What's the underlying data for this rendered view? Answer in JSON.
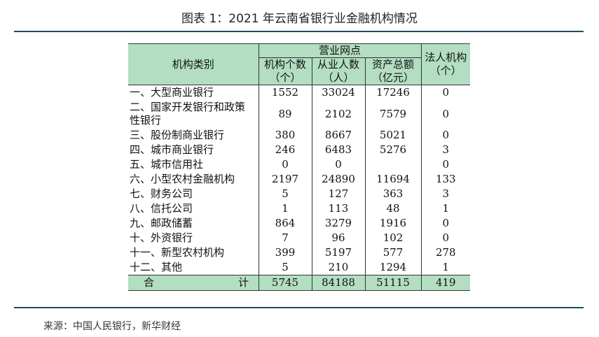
{
  "title": "图表 1：2021 年云南省银行业金融机构情况",
  "source": "来源：中国人民银行，新华财经",
  "table": {
    "header": {
      "category": "机构类别",
      "group": "营业网点",
      "branches": [
        "机构个数",
        "（个）"
      ],
      "employees": [
        "从业人数",
        "（人）"
      ],
      "assets": [
        "资产总额",
        "（亿元）"
      ],
      "legal": [
        "法人机构",
        "（个）"
      ]
    },
    "rows": [
      {
        "category": "一、大型商业银行",
        "branches": "1552",
        "employees": "33024",
        "assets": "17246",
        "legal": "0"
      },
      {
        "category": "二、国家开发银行和政策性银行",
        "category_line1": "二、国家开发银行和政策",
        "category_line2": "性银行",
        "branches": "89",
        "employees": "2102",
        "assets": "7579",
        "legal": "0"
      },
      {
        "category": "三、股份制商业银行",
        "branches": "380",
        "employees": "8667",
        "assets": "5021",
        "legal": "0"
      },
      {
        "category": "四、城市商业银行",
        "branches": "246",
        "employees": "6483",
        "assets": "5276",
        "legal": "3"
      },
      {
        "category": "五、城市信用社",
        "branches": "0",
        "employees": "0",
        "assets": "",
        "legal": "0"
      },
      {
        "category": "六、小型农村金融机构",
        "branches": "2197",
        "employees": "24890",
        "assets": "11694",
        "legal": "133"
      },
      {
        "category": "七、财务公司",
        "branches": "5",
        "employees": "127",
        "assets": "363",
        "legal": "3"
      },
      {
        "category": "八、信托公司",
        "branches": "1",
        "employees": "113",
        "assets": "48",
        "legal": "1"
      },
      {
        "category": "九、邮政储蓄",
        "branches": "864",
        "employees": "3279",
        "assets": "1916",
        "legal": "0"
      },
      {
        "category": "十、外资银行",
        "branches": "7",
        "employees": "96",
        "assets": "102",
        "legal": "0"
      },
      {
        "category": "十一、新型农村机构",
        "branches": "399",
        "employees": "5197",
        "assets": "577",
        "legal": "278"
      },
      {
        "category": "十二、其他",
        "branches": "5",
        "employees": "210",
        "assets": "1294",
        "legal": "1"
      }
    ],
    "total": {
      "label_left": "合",
      "label_right": "计",
      "branches": "5745",
      "employees": "84188",
      "assets": "51115",
      "legal": "419"
    }
  }
}
